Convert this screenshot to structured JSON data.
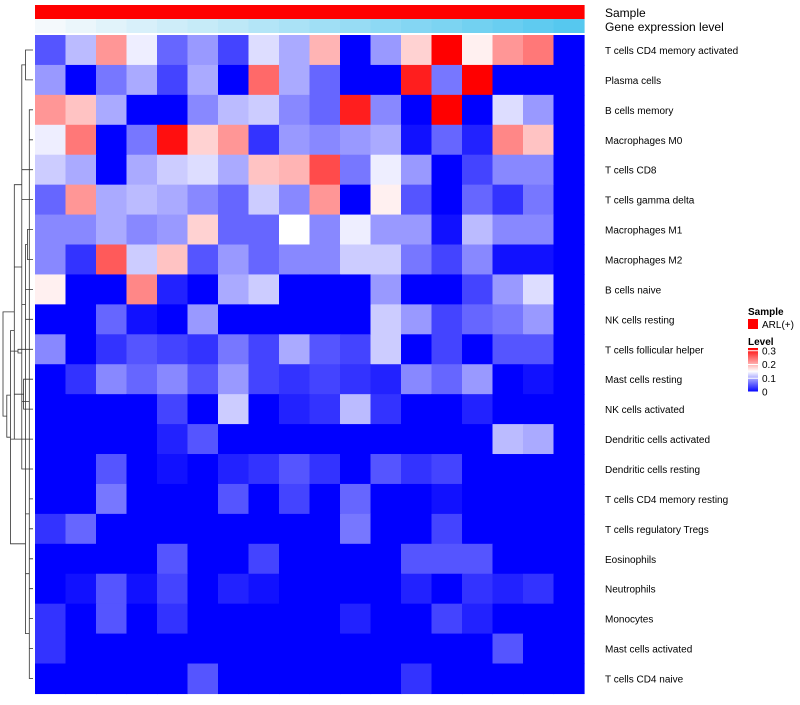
{
  "chart_data": {
    "type": "heatmap",
    "title": "",
    "annotation_tracks": [
      {
        "name": "Sample",
        "kind": "categorical",
        "values": [
          "ARL(+)",
          "ARL(+)",
          "ARL(+)",
          "ARL(+)",
          "ARL(+)",
          "ARL(+)",
          "ARL(+)",
          "ARL(+)",
          "ARL(+)",
          "ARL(+)",
          "ARL(+)",
          "ARL(+)",
          "ARL(+)",
          "ARL(+)",
          "ARL(+)",
          "ARL(+)",
          "ARL(+)",
          "ARL(+)"
        ]
      },
      {
        "name": "Gene expression level",
        "kind": "continuous",
        "values": [
          0.0,
          0.06,
          0.12,
          0.18,
          0.24,
          0.29,
          0.35,
          0.41,
          0.47,
          0.53,
          0.59,
          0.65,
          0.71,
          0.76,
          0.82,
          0.88,
          0.94,
          1.0
        ]
      }
    ],
    "rows": [
      "T cells CD4 memory activated",
      "Plasma cells",
      "B cells memory",
      "Macrophages M0",
      "T cells CD8",
      "T cells gamma delta",
      "Macrophages M1",
      "Macrophages M2",
      "B cells naive",
      "NK cells resting",
      "T cells follicular helper",
      "Mast cells resting",
      "NK cells activated",
      "Dendritic cells activated",
      "Dendritic cells resting",
      "T cells CD4 memory resting",
      "T cells regulatory  Tregs",
      "Eosinophils",
      "Neutrophils",
      "Monocytes",
      "Mast cells activated",
      "T cells CD4 naive"
    ],
    "n_columns": 18,
    "values": [
      [
        0.05,
        0.11,
        0.22,
        0.14,
        0.06,
        0.09,
        0.04,
        0.13,
        0.1,
        0.2,
        0.0,
        0.09,
        0.18,
        0.32,
        0.16,
        0.22,
        0.24,
        0.0
      ],
      [
        0.09,
        0.0,
        0.07,
        0.1,
        0.04,
        0.1,
        0.0,
        0.25,
        0.1,
        0.06,
        0.0,
        0.0,
        0.3,
        0.07,
        0.32,
        0.0,
        0.0,
        0.0
      ],
      [
        0.22,
        0.19,
        0.1,
        0.0,
        0.0,
        0.08,
        0.11,
        0.12,
        0.08,
        0.06,
        0.3,
        0.08,
        0.0,
        0.32,
        0.0,
        0.13,
        0.09,
        0.0
      ],
      [
        0.14,
        0.24,
        0.0,
        0.07,
        0.31,
        0.18,
        0.22,
        0.03,
        0.09,
        0.08,
        0.09,
        0.1,
        0.01,
        0.06,
        0.02,
        0.23,
        0.19,
        0.0
      ],
      [
        0.12,
        0.1,
        0.0,
        0.1,
        0.12,
        0.13,
        0.1,
        0.19,
        0.2,
        0.27,
        0.07,
        0.14,
        0.09,
        0.0,
        0.04,
        0.08,
        0.08,
        0.0
      ],
      [
        0.06,
        0.22,
        0.1,
        0.11,
        0.1,
        0.08,
        0.06,
        0.12,
        0.08,
        0.22,
        0.0,
        0.16,
        0.05,
        0.0,
        0.06,
        0.03,
        0.07,
        0.0
      ],
      [
        0.08,
        0.08,
        0.1,
        0.08,
        0.09,
        0.18,
        0.06,
        0.06,
        0.15,
        0.08,
        0.14,
        0.09,
        0.09,
        0.01,
        0.11,
        0.08,
        0.08,
        0.0
      ],
      [
        0.08,
        0.03,
        0.26,
        0.12,
        0.19,
        0.05,
        0.09,
        0.06,
        0.08,
        0.08,
        0.12,
        0.12,
        0.07,
        0.04,
        0.08,
        0.01,
        0.01,
        0.0
      ],
      [
        0.16,
        0.0,
        0.0,
        0.23,
        0.02,
        0.0,
        0.1,
        0.12,
        0.0,
        0.0,
        0.0,
        0.09,
        0.0,
        0.0,
        0.04,
        0.09,
        0.13,
        0.0
      ],
      [
        0.0,
        0.0,
        0.06,
        0.01,
        0.0,
        0.09,
        0.0,
        0.0,
        0.0,
        0.0,
        0.0,
        0.12,
        0.09,
        0.04,
        0.06,
        0.07,
        0.09,
        0.0
      ],
      [
        0.08,
        0.0,
        0.03,
        0.05,
        0.04,
        0.03,
        0.07,
        0.04,
        0.1,
        0.05,
        0.04,
        0.12,
        0.0,
        0.04,
        0.0,
        0.05,
        0.05,
        0.0
      ],
      [
        0.0,
        0.03,
        0.08,
        0.06,
        0.08,
        0.05,
        0.09,
        0.04,
        0.03,
        0.04,
        0.03,
        0.02,
        0.08,
        0.06,
        0.09,
        0.0,
        0.01,
        0.0
      ],
      [
        0.0,
        0.0,
        0.0,
        0.0,
        0.04,
        0.0,
        0.12,
        0.0,
        0.02,
        0.03,
        0.11,
        0.03,
        0.0,
        0.0,
        0.02,
        0.0,
        0.0,
        0.0
      ],
      [
        0.0,
        0.0,
        0.0,
        0.0,
        0.02,
        0.05,
        0.0,
        0.0,
        0.0,
        0.0,
        0.0,
        0.0,
        0.0,
        0.0,
        0.0,
        0.11,
        0.1,
        0.0
      ],
      [
        0.0,
        0.0,
        0.05,
        0.0,
        0.01,
        0.0,
        0.02,
        0.03,
        0.05,
        0.03,
        0.0,
        0.05,
        0.03,
        0.04,
        0.0,
        0.0,
        0.0,
        0.0
      ],
      [
        0.0,
        0.0,
        0.07,
        0.0,
        0.0,
        0.0,
        0.05,
        0.0,
        0.04,
        0.0,
        0.06,
        0.0,
        0.0,
        0.01,
        0.0,
        0.0,
        0.0,
        0.0
      ],
      [
        0.03,
        0.06,
        0.0,
        0.0,
        0.0,
        0.0,
        0.0,
        0.0,
        0.0,
        0.0,
        0.07,
        0.0,
        0.0,
        0.04,
        0.0,
        0.0,
        0.0,
        0.0
      ],
      [
        0.0,
        0.0,
        0.0,
        0.0,
        0.05,
        0.0,
        0.0,
        0.04,
        0.0,
        0.0,
        0.0,
        0.0,
        0.05,
        0.05,
        0.05,
        0.0,
        0.0,
        0.0
      ],
      [
        0.0,
        0.01,
        0.05,
        0.01,
        0.04,
        0.0,
        0.02,
        0.01,
        0.0,
        0.0,
        0.0,
        0.0,
        0.02,
        0.0,
        0.03,
        0.02,
        0.03,
        0.0
      ],
      [
        0.03,
        0.0,
        0.05,
        0.0,
        0.03,
        0.0,
        0.0,
        0.0,
        0.0,
        0.0,
        0.02,
        0.0,
        0.0,
        0.04,
        0.02,
        0.0,
        0.0,
        0.0
      ],
      [
        0.03,
        0.0,
        0.0,
        0.0,
        0.0,
        0.0,
        0.0,
        0.0,
        0.0,
        0.0,
        0.0,
        0.0,
        0.0,
        0.0,
        0.0,
        0.05,
        0.0,
        0.0
      ],
      [
        0.0,
        0.0,
        0.0,
        0.0,
        0.0,
        0.05,
        0.0,
        0.0,
        0.0,
        0.0,
        0.0,
        0.0,
        0.03,
        0.0,
        0.0,
        0.0,
        0.0,
        0.0
      ]
    ],
    "color_scale": {
      "name": "Level",
      "ticks": [
        0,
        0.1,
        0.2,
        0.3
      ],
      "tick_labels": [
        "0",
        "0.1",
        "0.2",
        "0.3"
      ],
      "colors": [
        "#0000ff",
        "#ffffff",
        "#ff0000"
      ],
      "range": [
        0,
        0.32
      ],
      "mid": 0.15
    },
    "legend_sample": {
      "title": "Sample",
      "entries": [
        {
          "label": "ARL(+)",
          "color": "#ff0000"
        }
      ]
    },
    "annotation_colors": {
      "sample": "#ff0000",
      "expression_low": "#f4f9fc",
      "expression_high": "#56c8ef"
    },
    "row_dendrogram": {
      "merges": [
        [
          2,
          3
        ],
        [
          21,
          22
        ],
        [
          15,
          16
        ],
        [
          17,
          18
        ],
        [
          19,
          20
        ],
        [
          6,
          7
        ],
        [
          8,
          9
        ],
        [
          0,
          1
        ],
        [
          24,
          25
        ],
        [
          26,
          27
        ],
        [
          11,
          12
        ],
        [
          23,
          28
        ],
        [
          14,
          29
        ],
        [
          4,
          5
        ],
        [
          10,
          33
        ],
        [
          32,
          34
        ],
        [
          31,
          35
        ],
        [
          13,
          36
        ],
        [
          30,
          37
        ],
        [
          39,
          40
        ],
        [
          38,
          41
        ]
      ],
      "heights": [
        1,
        1,
        1,
        1,
        1,
        1.5,
        2,
        2,
        2,
        2,
        2.5,
        3,
        3,
        3,
        4,
        5,
        5,
        6,
        6,
        7,
        8
      ]
    }
  }
}
